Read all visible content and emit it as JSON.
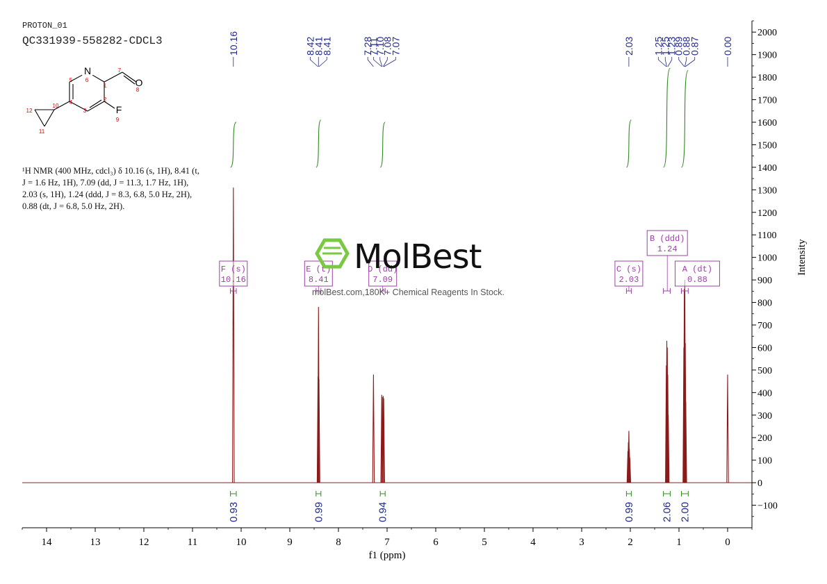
{
  "header": {
    "experiment": "PROTON_01",
    "sample": "QC331939-558282-CDCL3"
  },
  "structure": {
    "atom_labels": [
      "N",
      "6",
      "1",
      "7",
      "O",
      "8",
      "5",
      "2",
      "F",
      "9",
      "4",
      "3",
      "10",
      "12",
      "11"
    ]
  },
  "nmr_description_lines": [
    "¹H NMR (400 MHz, cdcl₃) δ 10.16 (s, 1H), 8.41 (t,",
    "J = 1.6 Hz, 1H), 7.09 (dd, J = 11.3, 1.7 Hz, 1H),",
    "2.03 (s, 1H), 1.24 (ddd, J = 8.3, 6.8, 5.0 Hz, 2H),",
    "0.88 (dt, J = 6.8, 5.0 Hz, 2H)."
  ],
  "watermark": {
    "brand": "MolBest",
    "tagline": "molBest.com,180K+ Chemical Reagents In Stock."
  },
  "colors": {
    "spectrum": "#8b1a1a",
    "peak_labels": "#1f2a8a",
    "integral_curve": "#2e8b1e",
    "multiplet_box": "#9b3fa6",
    "axis": "#000000",
    "watermark_logo": "#7ac943"
  },
  "chart_data": {
    "type": "line",
    "xlabel": "f1 (ppm)",
    "ylabel": "Intensity",
    "xlim": [
      14.5,
      -0.5
    ],
    "ylim": [
      -200,
      2050
    ],
    "x_reversed": true,
    "x_ticks": [
      14,
      13,
      12,
      11,
      10,
      9,
      8,
      7,
      6,
      5,
      4,
      3,
      2,
      1,
      0
    ],
    "y_ticks": [
      -100,
      0,
      100,
      200,
      300,
      400,
      500,
      600,
      700,
      800,
      900,
      1000,
      1100,
      1200,
      1300,
      1400,
      1500,
      1600,
      1700,
      1800,
      1900,
      2000
    ],
    "peaks": [
      {
        "ppm": 10.16,
        "height": 1310
      },
      {
        "ppm": 8.42,
        "height": 470
      },
      {
        "ppm": 8.41,
        "height": 780
      },
      {
        "ppm": 8.4,
        "height": 460
      },
      {
        "ppm": 7.28,
        "height": 480
      },
      {
        "ppm": 7.11,
        "height": 390
      },
      {
        "ppm": 7.1,
        "height": 380
      },
      {
        "ppm": 7.08,
        "height": 385
      },
      {
        "ppm": 7.07,
        "height": 375
      },
      {
        "ppm": 2.05,
        "height": 140
      },
      {
        "ppm": 2.04,
        "height": 180
      },
      {
        "ppm": 2.03,
        "height": 230
      },
      {
        "ppm": 2.02,
        "height": 150
      },
      {
        "ppm": 2.01,
        "height": 110
      },
      {
        "ppm": 1.26,
        "height": 520
      },
      {
        "ppm": 1.25,
        "height": 630
      },
      {
        "ppm": 1.24,
        "height": 600
      },
      {
        "ppm": 1.23,
        "height": 480
      },
      {
        "ppm": 1.22,
        "height": 300
      },
      {
        "ppm": 0.9,
        "height": 600
      },
      {
        "ppm": 0.89,
        "height": 860
      },
      {
        "ppm": 0.88,
        "height": 900
      },
      {
        "ppm": 0.87,
        "height": 620
      },
      {
        "ppm": 0.86,
        "height": 360
      },
      {
        "ppm": 0.0,
        "height": 480
      }
    ],
    "peak_labels": [
      {
        "label": "10.16",
        "ppm": 10.16
      },
      {
        "label": "8.42",
        "ppm": 8.42
      },
      {
        "label": "8.41",
        "ppm": 8.41
      },
      {
        "label": "8.41",
        "ppm": 8.4
      },
      {
        "label": "7.28",
        "ppm": 7.28
      },
      {
        "label": "7.11",
        "ppm": 7.11
      },
      {
        "label": "7.10",
        "ppm": 7.1
      },
      {
        "label": "7.08",
        "ppm": 7.08
      },
      {
        "label": "7.07",
        "ppm": 7.07
      },
      {
        "label": "2.03",
        "ppm": 2.03
      },
      {
        "label": "1.25",
        "ppm": 1.26
      },
      {
        "label": "1.25",
        "ppm": 1.25
      },
      {
        "label": "1.23",
        "ppm": 1.23
      },
      {
        "label": "0.89",
        "ppm": 0.89
      },
      {
        "label": "0.88",
        "ppm": 0.88
      },
      {
        "label": "0.87",
        "ppm": 0.87
      },
      {
        "label": "0.00",
        "ppm": 0.0
      }
    ],
    "integrals": [
      {
        "value": "0.93",
        "from": 10.22,
        "to": 10.1
      },
      {
        "value": "0.99",
        "from": 8.46,
        "to": 8.36
      },
      {
        "value": "0.94",
        "from": 7.14,
        "to": 7.04
      },
      {
        "value": "0.99",
        "from": 2.08,
        "to": 1.98
      },
      {
        "value": "2.06",
        "from": 1.32,
        "to": 1.18
      },
      {
        "value": "2.00",
        "from": 0.95,
        "to": 0.81
      }
    ],
    "integral_curves": [
      {
        "from": 10.22,
        "to": 10.1,
        "y_start": 1400,
        "y_end": 1600
      },
      {
        "from": 8.46,
        "to": 8.36,
        "y_start": 1400,
        "y_end": 1610
      },
      {
        "from": 7.14,
        "to": 7.04,
        "y_start": 1400,
        "y_end": 1600
      },
      {
        "from": 2.08,
        "to": 1.98,
        "y_start": 1400,
        "y_end": 1610
      },
      {
        "from": 1.32,
        "to": 1.18,
        "y_start": 1400,
        "y_end": 1840
      },
      {
        "from": 0.95,
        "to": 0.81,
        "y_start": 1400,
        "y_end": 1830
      }
    ],
    "multiplets": [
      {
        "letter": "F",
        "mult": "(s)",
        "shift": "10.16",
        "ppm": 10.16,
        "range": [
          10.22,
          10.1
        ],
        "box_y": 1000,
        "stacked": false
      },
      {
        "letter": "E",
        "mult": "(t)",
        "shift": "8.41",
        "ppm": 8.41,
        "range": [
          8.46,
          8.36
        ],
        "box_y": 1000,
        "stacked": false
      },
      {
        "letter": "D",
        "mult": "(dd)",
        "shift": "7.09",
        "ppm": 7.09,
        "range": [
          7.14,
          7.04
        ],
        "box_y": 1000,
        "stacked": false
      },
      {
        "letter": "C",
        "mult": "(s)",
        "shift": "2.03",
        "ppm": 2.03,
        "range": [
          2.08,
          1.98
        ],
        "box_y": 1000,
        "stacked": false
      },
      {
        "letter": "B",
        "mult": "(ddd)",
        "shift": "1.24",
        "ppm": 1.24,
        "range": [
          1.32,
          1.18
        ],
        "box_y": 1100,
        "stacked": true
      },
      {
        "letter": "A",
        "mult": "(dt)",
        "shift": "0.88",
        "ppm": 0.88,
        "range": [
          0.95,
          0.81
        ],
        "box_y": 1000,
        "stacked": false
      }
    ]
  }
}
